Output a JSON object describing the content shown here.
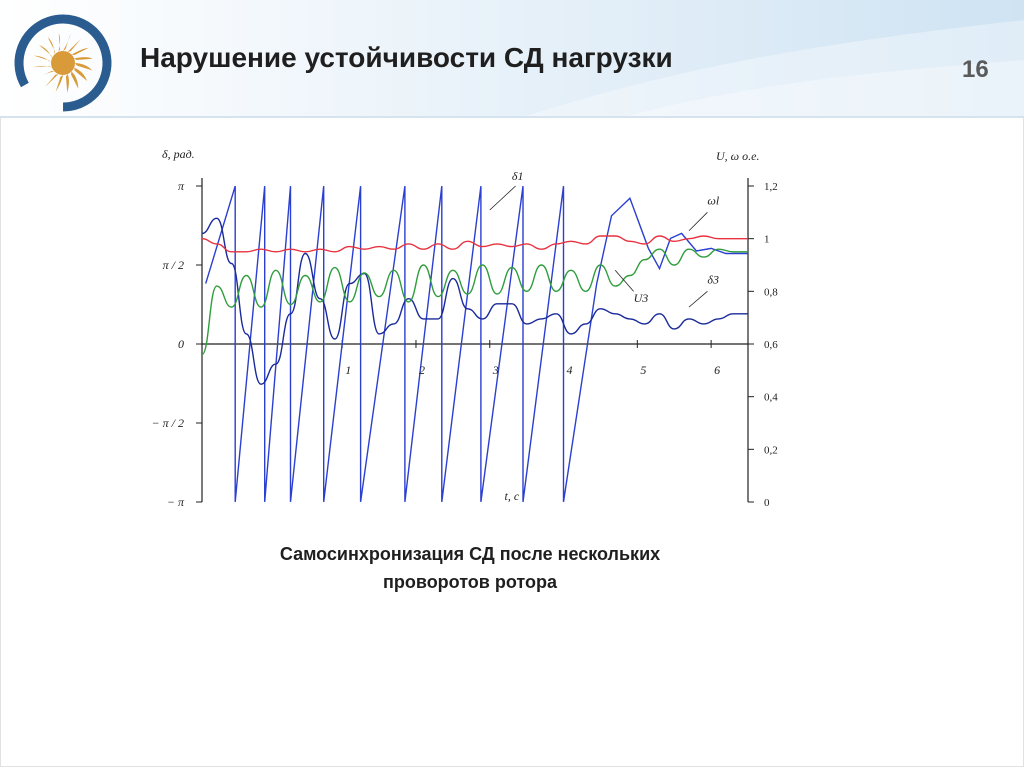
{
  "slide": {
    "title": "Нарушение устойчивости СД нагрузки",
    "number": "16",
    "caption_line1": "Самосинхронизация СД после нескольких",
    "caption_line2": "проворотов ротора"
  },
  "colors": {
    "header_gradient_from": "#ffffff",
    "header_gradient_to": "#cfe3f3",
    "logo_ring": "#2a5c8f",
    "logo_sun": "#d99a3a",
    "delta_curves": "#2b3fd0",
    "delta3_curve": "#1a2a9a",
    "omega_curve": "#e8313f",
    "voltage_curve": "#2f9d3c",
    "axes": "#222222"
  },
  "chart_data": {
    "type": "line",
    "left_axis": {
      "label": "δ, рад.",
      "ticks": [
        "π",
        "π / 2",
        "0",
        "− π / 2",
        "− π"
      ],
      "range": [
        -3.1416,
        3.1416
      ]
    },
    "right_axis": {
      "label": "U, ω о.е.",
      "ticks": [
        "1,2",
        "1",
        "0,8",
        "0,6",
        "0,4",
        "0,2",
        "0"
      ],
      "range": [
        0,
        1.2
      ]
    },
    "x_axis": {
      "label": "t, c",
      "ticks": [
        "1",
        "2",
        "3",
        "4",
        "5",
        "6"
      ],
      "range": [
        -0.9,
        6.5
      ]
    },
    "series": [
      {
        "name": "δ1",
        "axis": "left",
        "wrap_points": [
          {
            "t": -0.85,
            "v": 1.2
          },
          {
            "t": -0.45,
            "v": 3.14
          },
          {
            "t": -0.45,
            "v": -3.14
          },
          {
            "t": -0.05,
            "v": 3.14
          },
          {
            "t": -0.05,
            "v": -3.14
          },
          {
            "t": 0.3,
            "v": 3.14
          },
          {
            "t": 0.3,
            "v": -3.14
          },
          {
            "t": 0.75,
            "v": 3.14
          },
          {
            "t": 0.75,
            "v": -3.14
          },
          {
            "t": 1.25,
            "v": 3.14
          },
          {
            "t": 1.25,
            "v": -3.14
          },
          {
            "t": 1.85,
            "v": 3.14
          },
          {
            "t": 1.85,
            "v": -3.14
          },
          {
            "t": 2.35,
            "v": 3.14
          },
          {
            "t": 2.35,
            "v": -3.14
          },
          {
            "t": 2.88,
            "v": 3.14
          },
          {
            "t": 2.88,
            "v": -3.14
          },
          {
            "t": 3.45,
            "v": 3.14
          },
          {
            "t": 3.45,
            "v": -3.14
          },
          {
            "t": 4.0,
            "v": 3.14
          },
          {
            "t": 4.0,
            "v": -3.14
          },
          {
            "t": 4.45,
            "v": 1.2
          },
          {
            "t": 4.65,
            "v": 2.55
          },
          {
            "t": 4.9,
            "v": 2.9
          },
          {
            "t": 5.15,
            "v": 1.9
          },
          {
            "t": 5.3,
            "v": 1.5
          },
          {
            "t": 5.45,
            "v": 2.1
          },
          {
            "t": 5.6,
            "v": 2.2
          },
          {
            "t": 5.8,
            "v": 1.85
          },
          {
            "t": 6.0,
            "v": 1.9
          },
          {
            "t": 6.2,
            "v": 1.8
          },
          {
            "t": 6.5,
            "v": 1.8
          }
        ]
      },
      {
        "name": "δ3",
        "axis": "left",
        "x": [
          -0.9,
          -0.7,
          -0.5,
          -0.3,
          -0.1,
          0.1,
          0.3,
          0.5,
          0.7,
          0.9,
          1.1,
          1.3,
          1.5,
          1.7,
          1.9,
          2.1,
          2.3,
          2.5,
          2.7,
          2.9,
          3.1,
          3.3,
          3.5,
          3.7,
          3.9,
          4.1,
          4.3,
          4.5,
          4.7,
          4.9,
          5.1,
          5.3,
          5.5,
          5.7,
          5.9,
          6.1,
          6.3,
          6.5
        ],
        "y": [
          2.2,
          2.5,
          1.6,
          0.2,
          -0.8,
          -0.4,
          0.6,
          1.8,
          0.9,
          0.1,
          1.2,
          1.4,
          0.2,
          0.4,
          0.9,
          0.5,
          0.5,
          1.3,
          0.7,
          0.5,
          0.8,
          0.8,
          0.4,
          0.5,
          0.6,
          0.2,
          0.4,
          0.7,
          0.6,
          0.5,
          0.4,
          0.6,
          0.3,
          0.5,
          0.4,
          0.5,
          0.6,
          0.6
        ]
      },
      {
        "name": "ωl",
        "axis": "right",
        "x": [
          -0.9,
          -0.7,
          -0.5,
          -0.3,
          -0.1,
          0.1,
          0.3,
          0.5,
          0.7,
          0.9,
          1.1,
          1.3,
          1.5,
          1.7,
          1.9,
          2.1,
          2.3,
          2.5,
          2.7,
          2.9,
          3.1,
          3.3,
          3.5,
          3.7,
          3.9,
          4.1,
          4.3,
          4.5,
          4.7,
          4.9,
          5.1,
          5.3,
          5.5,
          5.7,
          5.9,
          6.1,
          6.3,
          6.5
        ],
        "y": [
          1.0,
          0.98,
          0.95,
          0.95,
          0.96,
          0.95,
          0.96,
          0.95,
          0.96,
          0.95,
          0.97,
          0.96,
          0.97,
          0.96,
          0.98,
          0.96,
          0.98,
          0.96,
          0.99,
          0.97,
          0.98,
          0.97,
          0.98,
          0.96,
          0.98,
          0.99,
          0.98,
          1.01,
          1.01,
          0.99,
          0.98,
          1.01,
          0.99,
          1.0,
          1.01,
          1.0,
          1.0,
          1.0
        ]
      },
      {
        "name": "U3",
        "axis": "right",
        "x": [
          -0.9,
          -0.7,
          -0.5,
          -0.3,
          -0.1,
          0.1,
          0.3,
          0.5,
          0.7,
          0.9,
          1.1,
          1.3,
          1.5,
          1.7,
          1.9,
          2.1,
          2.3,
          2.5,
          2.7,
          2.9,
          3.1,
          3.3,
          3.5,
          3.7,
          3.9,
          4.1,
          4.3,
          4.5,
          4.7,
          4.9,
          5.1,
          5.3,
          5.5,
          5.7,
          5.9,
          6.1,
          6.3,
          6.5
        ],
        "y": [
          0.56,
          0.82,
          0.74,
          0.86,
          0.74,
          0.88,
          0.75,
          0.86,
          0.76,
          0.89,
          0.76,
          0.87,
          0.78,
          0.88,
          0.76,
          0.9,
          0.78,
          0.88,
          0.79,
          0.9,
          0.79,
          0.89,
          0.8,
          0.9,
          0.8,
          0.88,
          0.8,
          0.9,
          0.82,
          0.86,
          0.92,
          0.96,
          0.9,
          0.96,
          0.93,
          0.96,
          0.95,
          0.95
        ]
      }
    ],
    "annotations": [
      "δ1",
      "ωl",
      "U3",
      "δ3"
    ]
  }
}
